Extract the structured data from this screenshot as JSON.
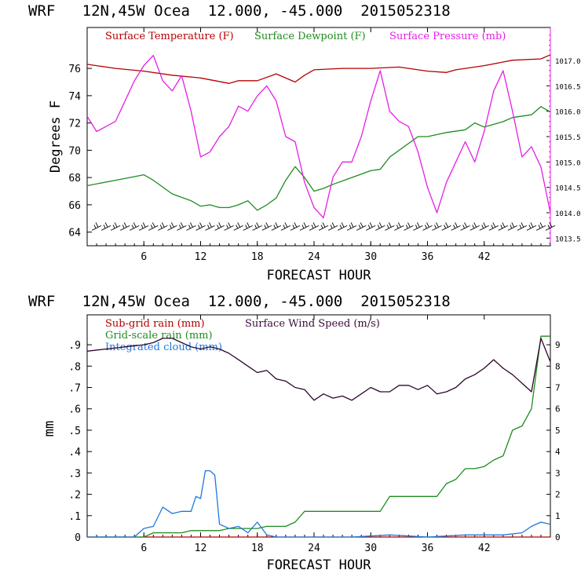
{
  "colors": {
    "temperature": "#b40000",
    "dewpoint": "#1e8c1e",
    "pressure": "#e61ee6",
    "subgrid_rain": "#b40000",
    "gridscale_rain": "#1e8c1e",
    "cloud": "#1e78dc",
    "wind": "#3c0a3c",
    "wind_barb": "#000000"
  },
  "chart_data": [
    {
      "type": "line",
      "header": "WRF   12N,45W Ocea  12.000, -45.000  2015052318",
      "xlabel": "FORECAST HOUR",
      "ylabel": "Degrees F",
      "xlim": [
        0,
        49
      ],
      "ylim": [
        63,
        79
      ],
      "xticks": [
        6,
        12,
        18,
        24,
        30,
        36,
        42
      ],
      "yticks": [
        64,
        66,
        68,
        70,
        72,
        74,
        76
      ],
      "right_axis": {
        "ylim": [
          1013.35,
          1017.65
        ],
        "ticks": [
          "1013.5",
          "1014.0",
          "1014.5",
          "1015.0",
          "1015.5",
          "1016.0",
          "1016.5",
          "1017.0"
        ]
      },
      "wind_barbs": {
        "y": 64.3,
        "count": 49
      },
      "series": [
        {
          "name": "Surface Temperature (F)",
          "color_key": "temperature",
          "axis": "left",
          "x": [
            0,
            3,
            6,
            9,
            12,
            15,
            16,
            18,
            20,
            22,
            23,
            24,
            27,
            30,
            33,
            36,
            38,
            39,
            42,
            45,
            48,
            49
          ],
          "y": [
            76.3,
            76.0,
            75.8,
            75.5,
            75.3,
            74.9,
            75.1,
            75.1,
            75.6,
            75.0,
            75.5,
            75.9,
            76.0,
            76.0,
            76.1,
            75.8,
            75.7,
            75.9,
            76.2,
            76.6,
            76.7,
            77.0
          ]
        },
        {
          "name": "Surface Dewpoint (F)",
          "color_key": "dewpoint",
          "axis": "left",
          "x": [
            0,
            3,
            6,
            7,
            9,
            11,
            12,
            13,
            14,
            15,
            16,
            17,
            18,
            19,
            20,
            21,
            22,
            23,
            24,
            25,
            26,
            28,
            30,
            31,
            32,
            35,
            36,
            38,
            40,
            41,
            42,
            43,
            44,
            45,
            47,
            48,
            49
          ],
          "y": [
            67.4,
            67.8,
            68.2,
            67.8,
            66.8,
            66.3,
            65.9,
            66.0,
            65.8,
            65.8,
            66.0,
            66.3,
            65.6,
            66.0,
            66.5,
            67.8,
            68.8,
            68.0,
            67.0,
            67.2,
            67.5,
            68.0,
            68.5,
            68.6,
            69.5,
            71.0,
            71.0,
            71.3,
            71.5,
            72.0,
            71.7,
            71.9,
            72.1,
            72.4,
            72.6,
            73.2,
            72.8
          ]
        },
        {
          "name": "Surface Pressure (mb)",
          "color_key": "pressure",
          "axis": "right",
          "x": [
            0,
            1,
            2,
            3,
            4,
            5,
            6,
            7,
            8,
            9,
            10,
            11,
            12,
            13,
            14,
            15,
            16,
            17,
            18,
            19,
            20,
            21,
            22,
            23,
            24,
            25,
            26,
            27,
            28,
            29,
            30,
            31,
            32,
            33,
            34,
            35,
            36,
            37,
            38,
            39,
            40,
            41,
            42,
            43,
            44,
            45,
            46,
            47,
            48,
            49
          ],
          "y": [
            1015.9,
            1015.6,
            1015.7,
            1015.8,
            1016.2,
            1016.6,
            1016.9,
            1017.1,
            1016.6,
            1016.4,
            1016.7,
            1016.0,
            1015.1,
            1015.2,
            1015.5,
            1015.7,
            1016.1,
            1016.0,
            1016.3,
            1016.5,
            1016.2,
            1015.5,
            1015.4,
            1014.6,
            1014.1,
            1013.9,
            1014.7,
            1015.0,
            1015.0,
            1015.5,
            1016.2,
            1016.8,
            1016.0,
            1015.8,
            1015.7,
            1015.2,
            1014.5,
            1014.0,
            1014.6,
            1015.0,
            1015.4,
            1015.0,
            1015.6,
            1016.4,
            1016.8,
            1016.0,
            1015.1,
            1015.3,
            1014.9,
            1014.0
          ]
        }
      ]
    },
    {
      "type": "line",
      "header": "WRF   12N,45W Ocea  12.000, -45.000  2015052318",
      "xlabel": "FORECAST HOUR",
      "ylabel": "mm",
      "xlim": [
        0,
        49
      ],
      "ylim": [
        0,
        1.04
      ],
      "xticks": [
        6,
        12,
        18,
        24,
        30,
        36,
        42
      ],
      "yticks": [
        0,
        0.1,
        0.2,
        0.3,
        0.4,
        0.5,
        0.6,
        0.7,
        0.8,
        0.9
      ],
      "ytick_labels": [
        "0",
        ".1",
        ".2",
        ".3",
        ".4",
        ".5",
        ".6",
        ".7",
        ".8",
        ".9"
      ],
      "right_axis": {
        "ylim": [
          0,
          10.4
        ],
        "ticks": [
          "0",
          "1",
          "2",
          "3",
          "4",
          "5",
          "6",
          "7",
          "8",
          "9"
        ]
      },
      "series": [
        {
          "name": "Sub-grid rain (mm)",
          "color_key": "subgrid_rain",
          "axis": "left",
          "x": [
            0,
            49
          ],
          "y": [
            0,
            0
          ]
        },
        {
          "name": "Grid-scale rain (mm)",
          "color_key": "gridscale_rain",
          "axis": "left",
          "x": [
            0,
            6,
            7,
            10,
            11,
            14,
            15,
            18,
            19,
            21,
            22,
            23,
            31,
            32,
            37,
            38,
            39,
            40,
            41,
            42,
            43,
            44,
            45,
            46,
            47,
            48,
            49
          ],
          "y": [
            0,
            0,
            0.02,
            0.02,
            0.03,
            0.03,
            0.04,
            0.04,
            0.05,
            0.05,
            0.07,
            0.12,
            0.12,
            0.19,
            0.19,
            0.25,
            0.27,
            0.32,
            0.32,
            0.33,
            0.36,
            0.38,
            0.5,
            0.52,
            0.6,
            0.94,
            0.94
          ]
        },
        {
          "name": "Integrated cloud (mm)",
          "color_key": "cloud",
          "axis": "left",
          "x": [
            0,
            5,
            6,
            7,
            8,
            9,
            10,
            11,
            11.5,
            12,
            12.5,
            13,
            13.5,
            14,
            15,
            16,
            17,
            18,
            19,
            20,
            24,
            28,
            32,
            36,
            40,
            44,
            46,
            47,
            48,
            49
          ],
          "y": [
            0,
            0,
            0.04,
            0.05,
            0.14,
            0.11,
            0.12,
            0.12,
            0.19,
            0.18,
            0.31,
            0.31,
            0.29,
            0.06,
            0.04,
            0.05,
            0.02,
            0.07,
            0.01,
            0,
            0,
            0,
            0.01,
            0,
            0.01,
            0.01,
            0.02,
            0.05,
            0.07,
            0.06
          ]
        },
        {
          "name": "Surface Wind Speed (m/s)",
          "color_key": "wind",
          "axis": "right",
          "x": [
            0,
            2,
            4,
            6,
            7,
            8,
            9,
            10,
            11,
            12,
            13,
            14,
            15,
            16,
            17,
            18,
            19,
            20,
            21,
            22,
            23,
            24,
            25,
            26,
            27,
            28,
            29,
            30,
            31,
            32,
            33,
            34,
            35,
            36,
            37,
            38,
            39,
            40,
            41,
            42,
            43,
            44,
            45,
            46,
            47,
            48,
            49
          ],
          "y": [
            8.7,
            8.8,
            8.9,
            9.0,
            9.1,
            9.3,
            9.3,
            9.1,
            8.9,
            8.8,
            8.9,
            8.8,
            8.6,
            8.3,
            8.0,
            7.7,
            7.8,
            7.4,
            7.3,
            7.0,
            6.9,
            6.4,
            6.7,
            6.5,
            6.6,
            6.4,
            6.7,
            7.0,
            6.8,
            6.8,
            7.1,
            7.1,
            6.9,
            7.1,
            6.7,
            6.8,
            7.0,
            7.4,
            7.6,
            7.9,
            8.3,
            7.9,
            7.6,
            7.2,
            6.8,
            9.3,
            8.2
          ]
        }
      ]
    }
  ]
}
